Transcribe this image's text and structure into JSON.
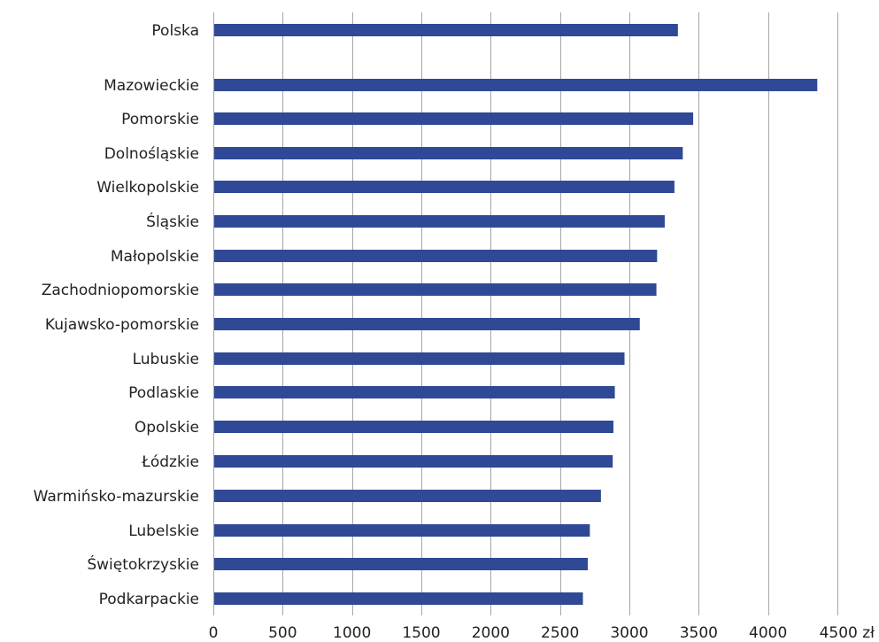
{
  "chart_data": {
    "type": "bar",
    "orientation": "horizontal",
    "categories": [
      "Polska",
      "Mazowieckie",
      "Pomorskie",
      "Dolnośląskie",
      "Wielkopolskie",
      "Śląskie",
      "Małopolskie",
      "Zachodniopomorskie",
      "Kujawsko-pomorskie",
      "Lubuskie",
      "Podlaskie",
      "Opolskie",
      "Łódzkie",
      "Warmińsko-mazurskie",
      "Lubelskie",
      "Świętokrzyskie",
      "Podkarpackie"
    ],
    "values": [
      3350,
      4355,
      3460,
      3385,
      3325,
      3255,
      3200,
      3195,
      3075,
      2965,
      2895,
      2885,
      2880,
      2795,
      2715,
      2700,
      2665
    ],
    "xlim": [
      0,
      4500
    ],
    "x_ticks": [
      0,
      500,
      1000,
      1500,
      2000,
      2500,
      3000,
      3500,
      4000,
      4500
    ],
    "x_tick_labels": [
      "0",
      "500",
      "1000",
      "1500",
      "2000",
      "2500",
      "3000",
      "3500",
      "4000",
      "4500 zł"
    ],
    "grid": true,
    "legend": false,
    "bar_color": "#2f4996",
    "grid_color": "#a6a6a6",
    "title": "",
    "xlabel": "",
    "ylabel": ""
  }
}
